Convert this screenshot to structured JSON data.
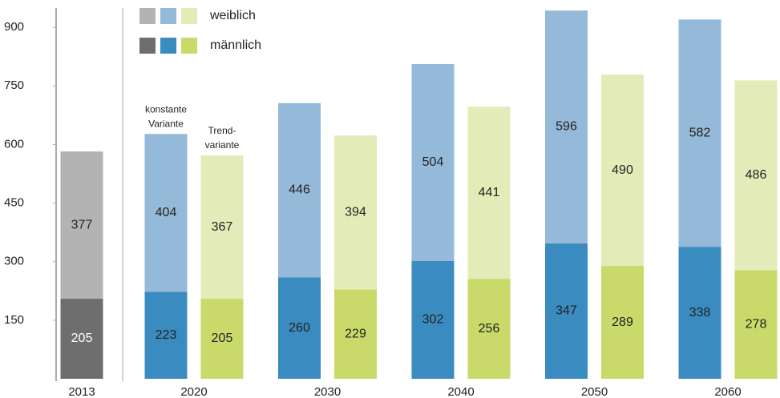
{
  "chart_data": {
    "type": "stacked_bar",
    "legend": [
      {
        "name": "weiblich",
        "colors": [
          "#b3b3b3",
          "#95b9d8",
          "#e3ecb8"
        ]
      },
      {
        "name": "männlich",
        "colors": [
          "#6e6e6e",
          "#3a8bbf",
          "#c9da6a"
        ]
      }
    ],
    "variant_labels": [
      [
        "konstante",
        "Variante"
      ],
      [
        "Trend-",
        "variante"
      ]
    ],
    "groups": [
      {
        "label": "2013",
        "stacks": [
          {
            "style": 0,
            "values": [
              205,
              377
            ]
          }
        ]
      },
      {
        "label": "2020",
        "stacks": [
          {
            "style": 1,
            "values": [
              223,
              404
            ]
          },
          {
            "style": 2,
            "values": [
              205,
              367
            ]
          }
        ]
      },
      {
        "label": "2030",
        "stacks": [
          {
            "style": 1,
            "values": [
              260,
              446
            ]
          },
          {
            "style": 2,
            "values": [
              229,
              394
            ]
          }
        ]
      },
      {
        "label": "2040",
        "stacks": [
          {
            "style": 1,
            "values": [
              302,
              504
            ]
          },
          {
            "style": 2,
            "values": [
              256,
              441
            ]
          }
        ]
      },
      {
        "label": "2050",
        "stacks": [
          {
            "style": 1,
            "values": [
              347,
              596
            ]
          },
          {
            "style": 2,
            "values": [
              289,
              490
            ]
          }
        ]
      },
      {
        "label": "2060",
        "stacks": [
          {
            "style": 1,
            "values": [
              338,
              582
            ]
          },
          {
            "style": 2,
            "values": [
              278,
              486
            ]
          }
        ]
      }
    ],
    "ylim": [
      0,
      970
    ],
    "yticks": [
      150,
      300,
      450,
      600,
      750,
      900
    ]
  }
}
